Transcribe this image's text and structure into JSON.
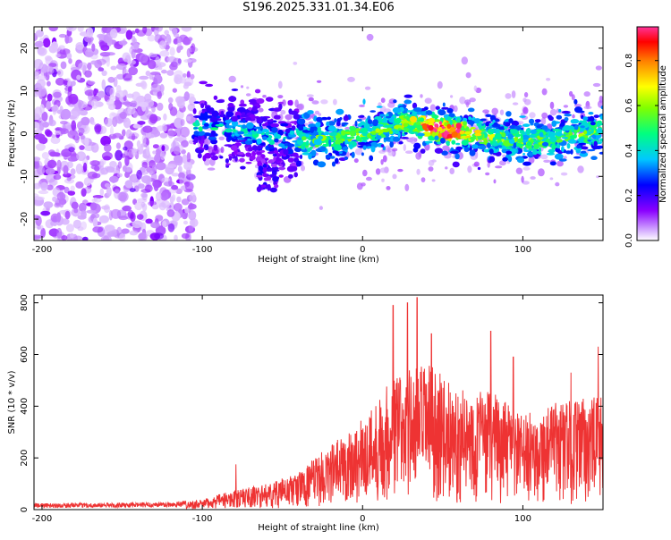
{
  "title": "S196.2025.331.01.34.E06",
  "chart_data": [
    {
      "type": "heatmap",
      "panel": "spectrogram",
      "title": "S196.2025.331.01.34.E06",
      "xlabel": "Height of straight line (km)",
      "ylabel": "Frequency (Hz)",
      "xlim": [
        -205,
        150
      ],
      "ylim": [
        -25,
        25
      ],
      "xticks": [
        -200,
        -100,
        0,
        100
      ],
      "yticks": [
        -20,
        -10,
        0,
        10,
        20
      ],
      "colorbar": {
        "label": "Normalized spectral amplitude",
        "range": [
          0,
          0.95
        ],
        "ticks": [
          0.0,
          0.2,
          0.4,
          0.6,
          0.8
        ],
        "tick_labels": [
          "0.0",
          "0.2",
          "0.4",
          "0.6",
          "0.8"
        ]
      },
      "description_features": [
        {
          "region": "noise",
          "x_range": [
            -205,
            -105
          ],
          "freq_range": [
            -25,
            25
          ],
          "amplitude": 0.1
        },
        {
          "region": "signal",
          "x_range": [
            -105,
            150
          ],
          "freq_center": 0,
          "freq_spread": 3,
          "amplitude_peak": 0.9,
          "peak_x": 50
        }
      ]
    },
    {
      "type": "line",
      "panel": "snr",
      "xlabel": "Height of straight line (km)",
      "ylabel": "SNR (10 * v/v)",
      "xlim": [
        -205,
        150
      ],
      "ylim": [
        0,
        830
      ],
      "xticks": [
        -200,
        -100,
        0,
        100
      ],
      "yticks": [
        0,
        200,
        400,
        600,
        800
      ],
      "color": "#ee3333",
      "envelope": {
        "x": [
          -205,
          -150,
          -120,
          -100,
          -80,
          -60,
          -40,
          -20,
          0,
          20,
          40,
          60,
          80,
          100,
          120,
          150
        ],
        "y": [
          20,
          22,
          25,
          35,
          70,
          90,
          130,
          230,
          320,
          480,
          520,
          420,
          420,
          330,
          380,
          400
        ]
      },
      "peaks": [
        {
          "x": -79,
          "y": 175
        },
        {
          "x": 19,
          "y": 790
        },
        {
          "x": 28,
          "y": 800
        },
        {
          "x": 34,
          "y": 820
        },
        {
          "x": 43,
          "y": 680
        },
        {
          "x": 80,
          "y": 690
        },
        {
          "x": 94,
          "y": 590
        },
        {
          "x": 130,
          "y": 530
        },
        {
          "x": 147,
          "y": 630
        }
      ]
    }
  ]
}
